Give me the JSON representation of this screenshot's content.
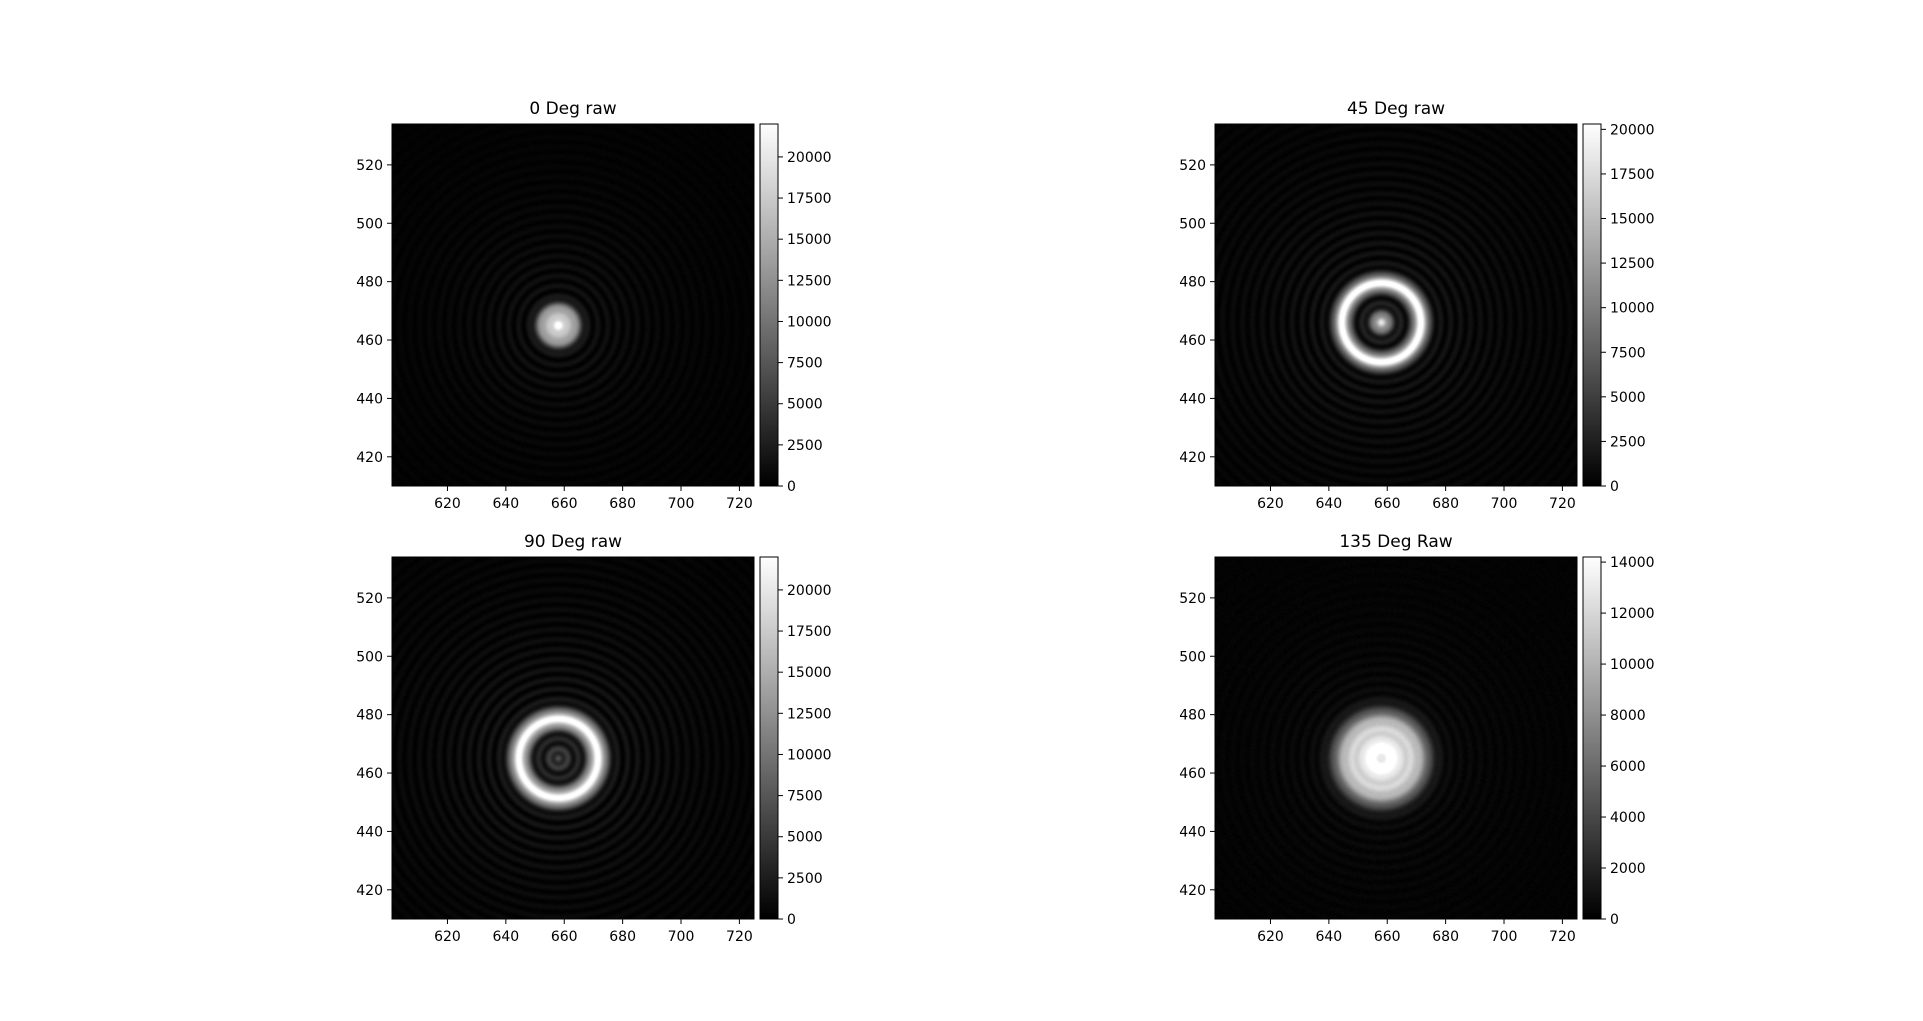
{
  "chart_data": [
    {
      "type": "heatmap",
      "title": "0 Deg raw",
      "colormap": "gray",
      "x_ticks": [
        620,
        640,
        660,
        680,
        700,
        720
      ],
      "y_ticks": [
        420,
        440,
        460,
        480,
        500,
        520
      ],
      "xlim": [
        601,
        725
      ],
      "ylim": [
        410,
        534
      ],
      "colorbar": {
        "ticks": [
          0,
          2500,
          5000,
          7500,
          10000,
          12500,
          15000,
          17500,
          20000
        ],
        "range": [
          0,
          22000
        ]
      },
      "pattern": {
        "center": [
          658,
          465
        ],
        "components": [
          {
            "kind": "peak",
            "radius": 0,
            "width": 2.6,
            "amp": 22000
          },
          {
            "kind": "ring",
            "radius": 5.5,
            "width": 1.8,
            "amp": 11000
          }
        ],
        "fringe": {
          "extent": 30,
          "amp": 2200,
          "period": 3.4
        }
      }
    },
    {
      "type": "heatmap",
      "title": "45 Deg raw",
      "colormap": "gray",
      "x_ticks": [
        620,
        640,
        660,
        680,
        700,
        720
      ],
      "y_ticks": [
        420,
        440,
        460,
        480,
        500,
        520
      ],
      "xlim": [
        601,
        725
      ],
      "ylim": [
        410,
        534
      ],
      "colorbar": {
        "ticks": [
          0,
          2500,
          5000,
          7500,
          10000,
          12500,
          15000,
          17500,
          20000
        ],
        "range": [
          0,
          20300
        ]
      },
      "pattern": {
        "center": [
          658,
          466
        ],
        "components": [
          {
            "kind": "peak",
            "radius": 0,
            "width": 2.4,
            "amp": 16000
          },
          {
            "kind": "ring",
            "radius": 13.5,
            "width": 1.9,
            "amp": 20000
          }
        ],
        "fringe": {
          "extent": 40,
          "amp": 2600,
          "period": 3.4
        }
      }
    },
    {
      "type": "heatmap",
      "title": "90 Deg raw",
      "colormap": "gray",
      "x_ticks": [
        620,
        640,
        660,
        680,
        700,
        720
      ],
      "y_ticks": [
        420,
        440,
        460,
        480,
        500,
        520
      ],
      "xlim": [
        601,
        725
      ],
      "ylim": [
        410,
        534
      ],
      "colorbar": {
        "ticks": [
          0,
          2500,
          5000,
          7500,
          10000,
          12500,
          15000,
          17500,
          20000
        ],
        "range": [
          0,
          22000
        ]
      },
      "pattern": {
        "center": [
          658,
          465
        ],
        "components": [
          {
            "kind": "peak",
            "radius": 0,
            "width": 3.5,
            "amp": 3500
          },
          {
            "kind": "ring",
            "radius": 13.5,
            "width": 2.2,
            "amp": 21000
          }
        ],
        "fringe": {
          "extent": 38,
          "amp": 3200,
          "period": 3.4
        }
      }
    },
    {
      "type": "heatmap",
      "title": "135 Deg Raw",
      "colormap": "gray",
      "x_ticks": [
        620,
        640,
        660,
        680,
        700,
        720
      ],
      "y_ticks": [
        420,
        440,
        460,
        480,
        500,
        520
      ],
      "xlim": [
        601,
        725
      ],
      "ylim": [
        410,
        534
      ],
      "colorbar": {
        "ticks": [
          0,
          2000,
          4000,
          6000,
          8000,
          10000,
          12000,
          14000
        ],
        "range": [
          0,
          14200
        ]
      },
      "pattern": {
        "center": [
          658,
          465
        ],
        "components": [
          {
            "kind": "disk",
            "radius": 15.5,
            "width": 1.6,
            "amp": 11500
          },
          {
            "kind": "ring",
            "radius": 2.4,
            "width": 0.9,
            "amp": 3000
          },
          {
            "kind": "ring",
            "radius": 4.8,
            "width": 0.9,
            "amp": 2600
          }
        ],
        "fringe": {
          "extent": 26,
          "amp": 1300,
          "period": 3.4
        }
      }
    }
  ]
}
